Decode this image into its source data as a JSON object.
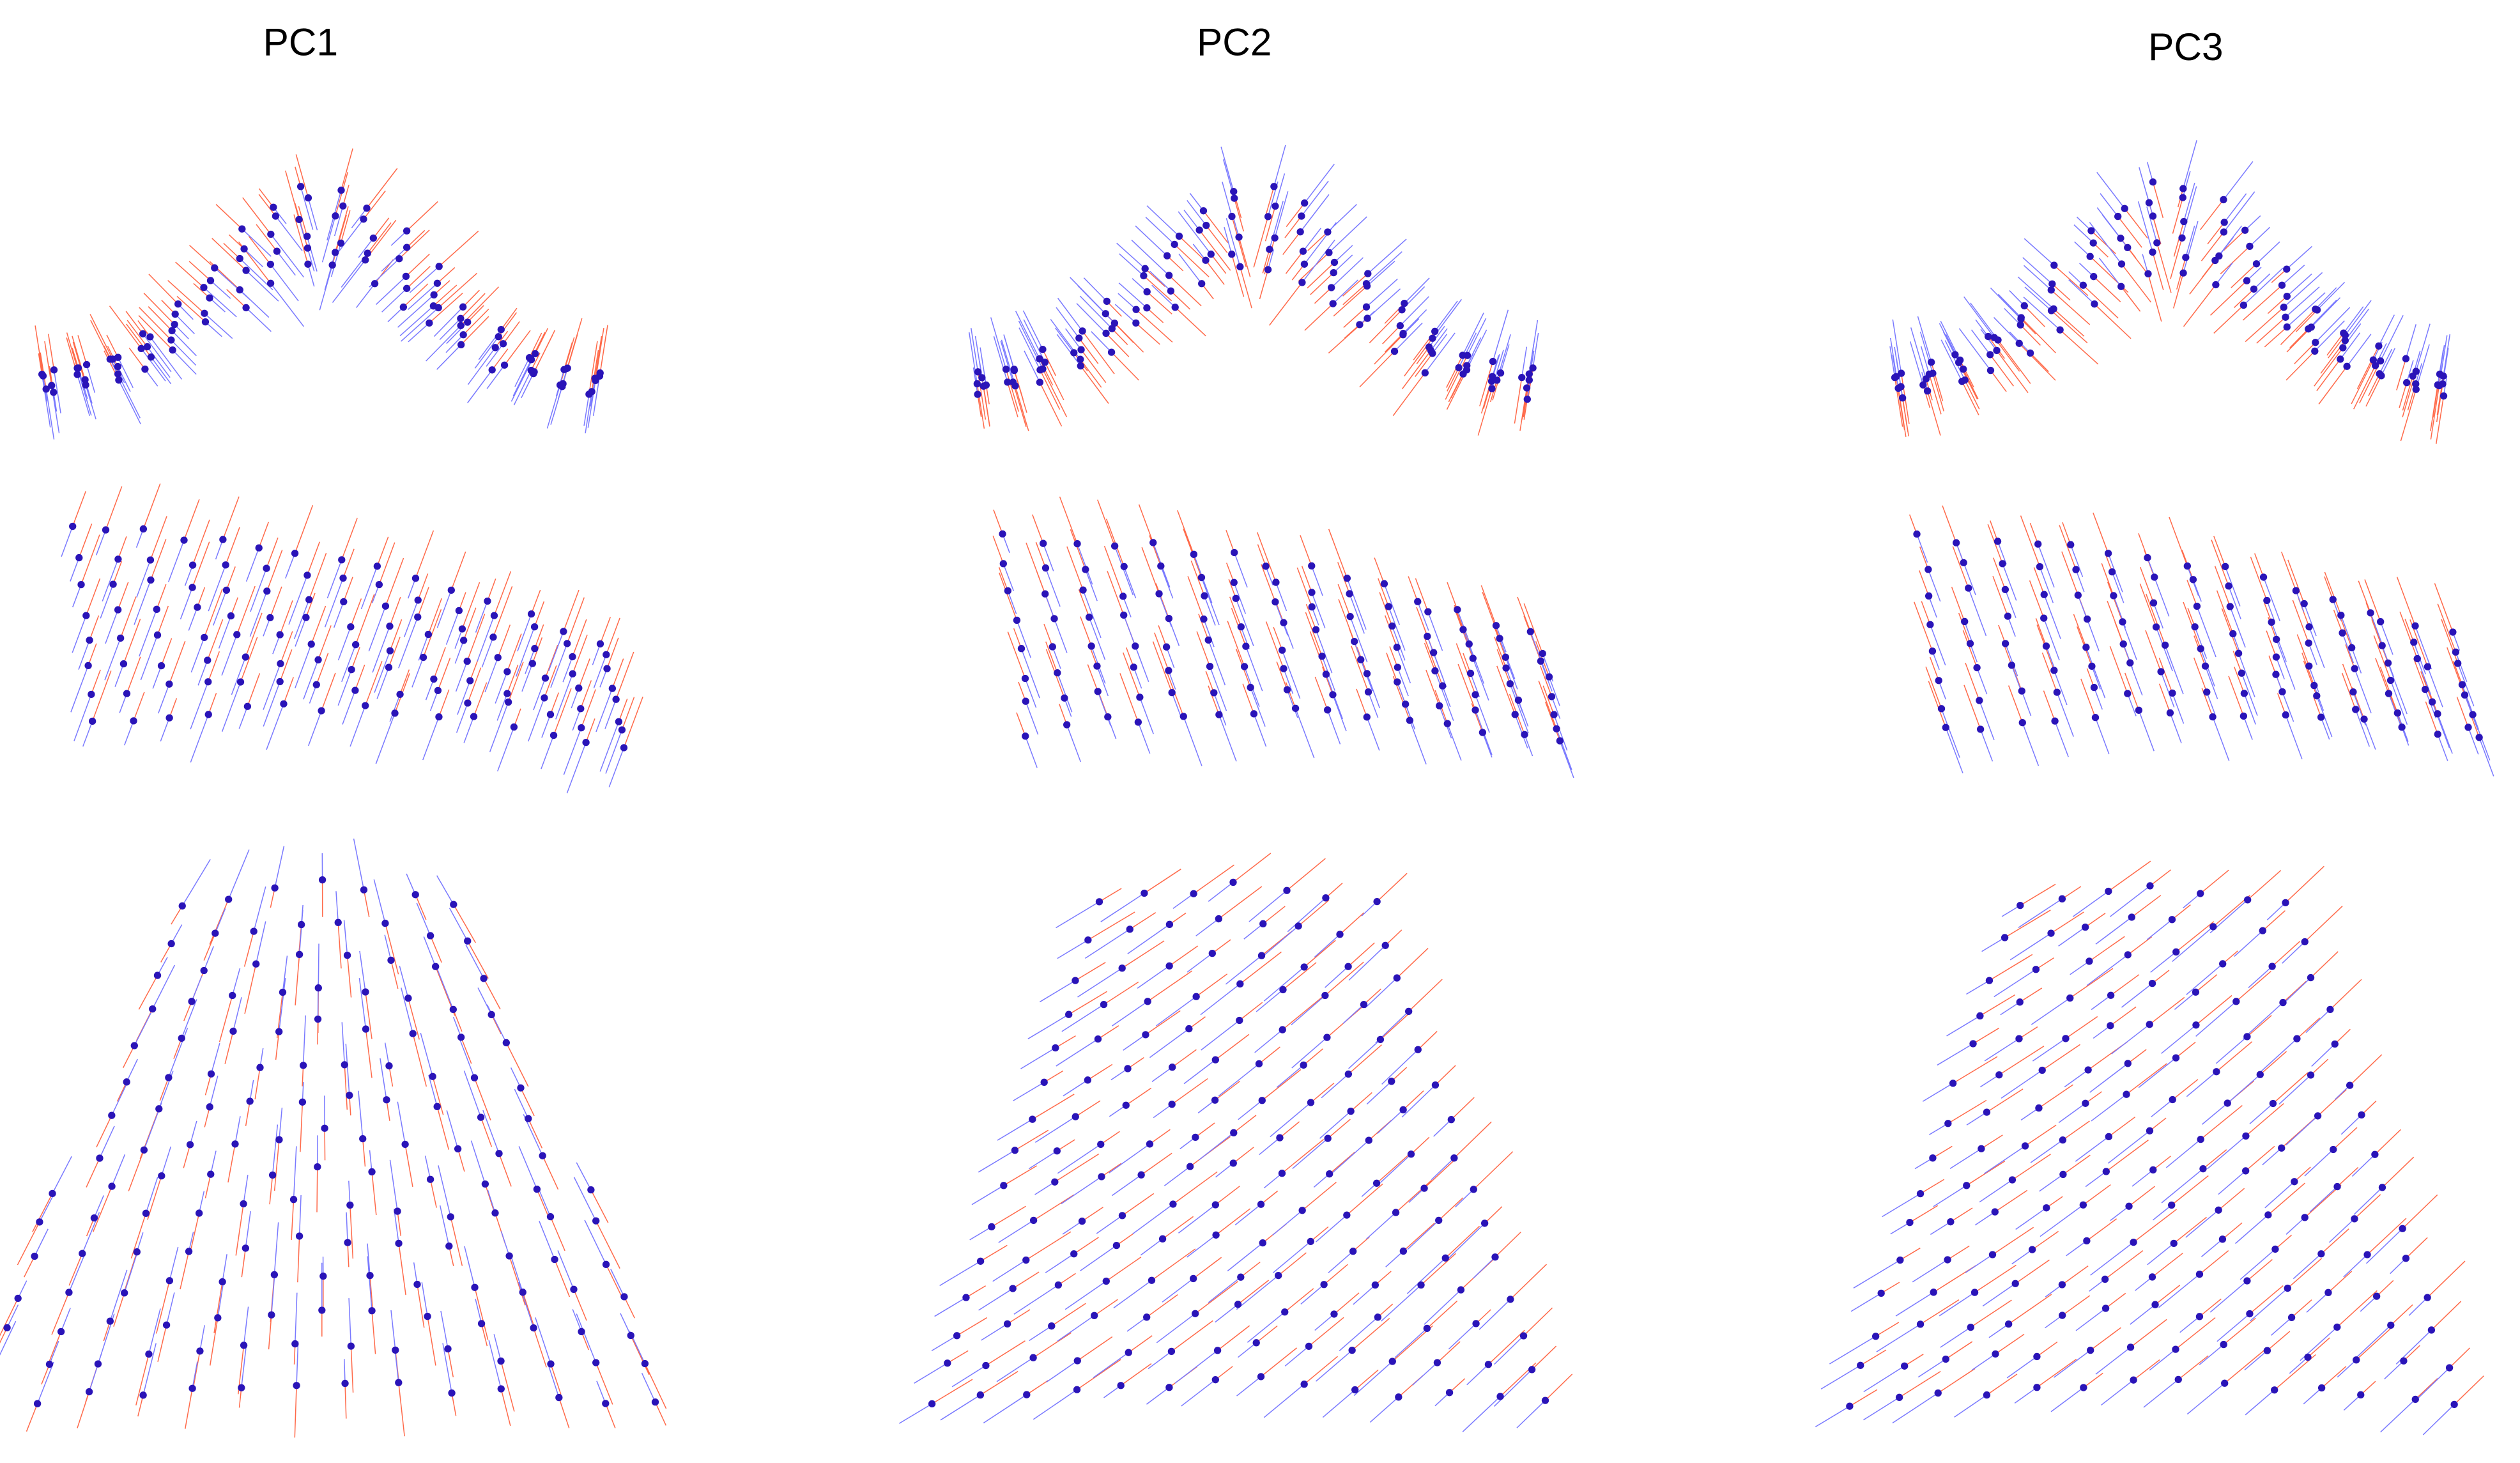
{
  "columns": [
    {
      "title": "PC1"
    },
    {
      "title": "PC2"
    },
    {
      "title": "PC3"
    }
  ]
}
